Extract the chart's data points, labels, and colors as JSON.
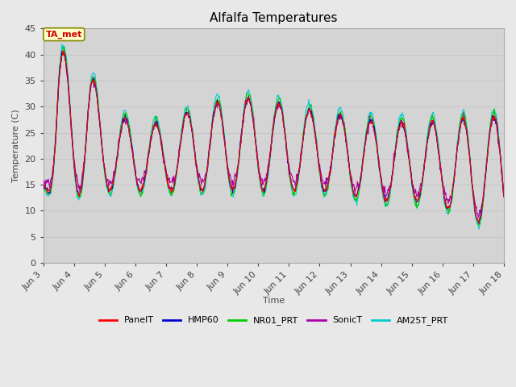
{
  "title": "Alfalfa Temperatures",
  "ylabel": "Temperature (C)",
  "xlabel": "Time",
  "annotation": "TA_met",
  "ylim": [
    0,
    45
  ],
  "yticks": [
    0,
    5,
    10,
    15,
    20,
    25,
    30,
    35,
    40,
    45
  ],
  "fig_bg_color": "#e8e8e8",
  "plot_bg_color": "#d4d4d4",
  "legend_items": [
    "PanelT",
    "HMP60",
    "NR01_PRT",
    "SonicT",
    "AM25T_PRT"
  ],
  "legend_colors": [
    "#ff0000",
    "#0000cc",
    "#00cc00",
    "#aa00aa",
    "#00cccc"
  ],
  "line_width": 0.8,
  "title_fontsize": 11,
  "label_fontsize": 8,
  "tick_fontsize": 8,
  "annotation_color": "#cc0000",
  "annotation_bg": "#ffffcc",
  "annotation_border": "#888800"
}
